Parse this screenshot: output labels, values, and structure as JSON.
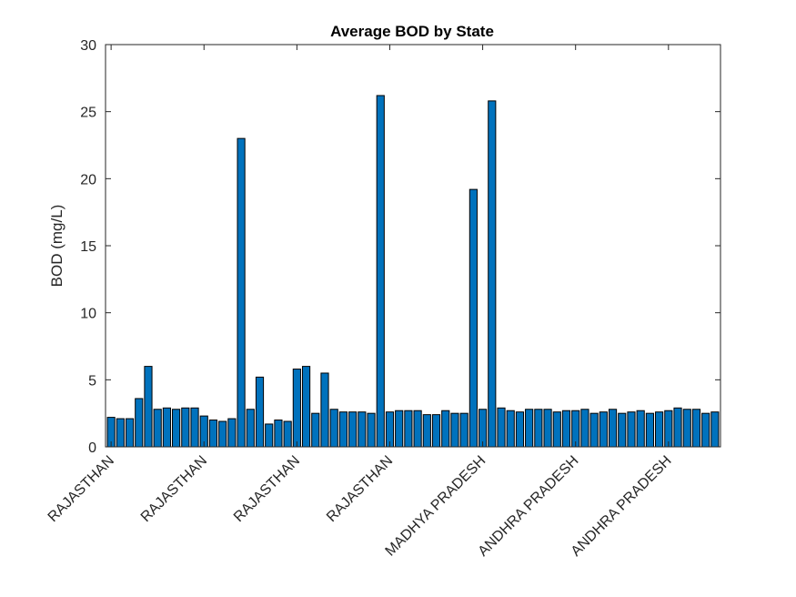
{
  "chart_data": {
    "type": "bar",
    "title": "Average BOD by State",
    "xlabel": "",
    "ylabel": "BOD (mg/L)",
    "ylim": [
      0,
      30
    ],
    "yticks": [
      0,
      5,
      10,
      15,
      20,
      25,
      30
    ],
    "xtick_labels": [
      {
        "index": 0,
        "label": "RAJASTHAN"
      },
      {
        "index": 10,
        "label": "RAJASTHAN"
      },
      {
        "index": 20,
        "label": "RAJASTHAN"
      },
      {
        "index": 30,
        "label": "RAJASTHAN"
      },
      {
        "index": 40,
        "label": "MADHYA PRADESH"
      },
      {
        "index": 50,
        "label": "ANDHRA PRADESH"
      },
      {
        "index": 60,
        "label": "ANDHRA PRADESH"
      }
    ],
    "values": [
      2.2,
      2.1,
      2.1,
      3.6,
      6.0,
      2.8,
      2.9,
      2.8,
      2.9,
      2.9,
      2.3,
      2.0,
      1.9,
      2.1,
      23.0,
      2.8,
      5.2,
      1.7,
      2.0,
      1.9,
      5.8,
      6.0,
      2.5,
      5.5,
      2.8,
      2.6,
      2.6,
      2.6,
      2.5,
      26.2,
      2.6,
      2.7,
      2.7,
      2.7,
      2.4,
      2.4,
      2.7,
      2.5,
      2.5,
      19.2,
      2.8,
      25.8,
      2.9,
      2.7,
      2.6,
      2.8,
      2.8,
      2.8,
      2.6,
      2.7,
      2.7,
      2.8,
      2.5,
      2.6,
      2.8,
      2.5,
      2.6,
      2.7,
      2.5,
      2.6,
      2.7,
      2.9,
      2.8,
      2.8,
      2.5,
      2.6
    ],
    "bar_color": "#0072bd",
    "grid": false
  }
}
